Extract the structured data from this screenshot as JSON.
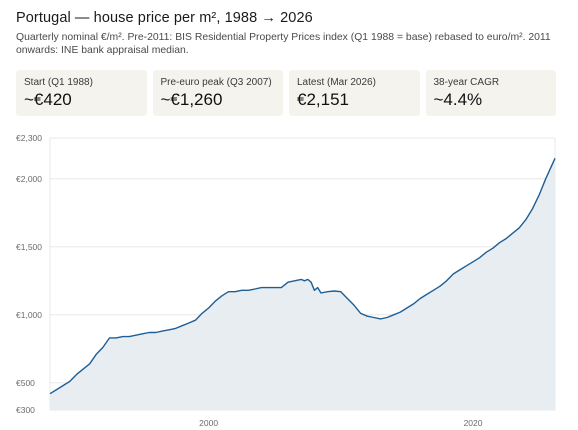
{
  "header": {
    "title": "Portugal — house price per m², 1988 → 2026",
    "subtitle": "Quarterly nominal €/m². Pre-2011: BIS Residential Property Prices index (Q1 1988 = base) rebased to euro/m². 2011 onwards: INE bank appraisal median."
  },
  "stats": [
    {
      "label": "Start (Q1 1988)",
      "value": "~€420"
    },
    {
      "label": "Pre-euro peak (Q3 2007)",
      "value": "~€1,260"
    },
    {
      "label": "Latest (Mar 2026)",
      "value": "€2,151"
    },
    {
      "label": "38-year CAGR",
      "value": "~4.4%"
    }
  ],
  "colors": {
    "line": "#1f5f95",
    "area": "#e8edf2",
    "grid": "#e3e3e3",
    "card_bg": "#f5f3ee"
  },
  "chart_data": {
    "type": "area",
    "title": "",
    "xlabel": "",
    "ylabel": "",
    "xlim": [
      1988.0,
      2026.2
    ],
    "ylim": [
      300,
      2300
    ],
    "y_ticks": [
      {
        "value": 2300,
        "label": "€2,300"
      },
      {
        "value": 2000,
        "label": "€2,000"
      },
      {
        "value": 1500,
        "label": "€1,500"
      },
      {
        "value": 1000,
        "label": "€1,000"
      },
      {
        "value": 500,
        "label": "€500"
      },
      {
        "value": 300,
        "label": "€300"
      }
    ],
    "x_ticks": [
      {
        "value": 2000,
        "label": "2000"
      },
      {
        "value": 2020,
        "label": "2020"
      }
    ],
    "grid": true,
    "series": [
      {
        "x": [
          1988.0,
          1988.5,
          1989.0,
          1989.5,
          1990.0,
          1990.5,
          1991.0,
          1991.5,
          1992.0,
          1992.5,
          1993.0,
          1993.5,
          1994.0,
          1994.5,
          1995.0,
          1995.5,
          1996.0,
          1996.5,
          1997.0,
          1997.5,
          1998.0,
          1998.5,
          1999.0,
          1999.5,
          2000.0,
          2000.5,
          2001.0,
          2001.5,
          2002.0,
          2002.5,
          2003.0,
          2003.5,
          2004.0,
          2004.5,
          2005.0,
          2005.5,
          2006.0,
          2006.5,
          2007.0,
          2007.25,
          2007.5,
          2007.75,
          2008.0,
          2008.25,
          2008.5,
          2009.0,
          2009.5,
          2010.0,
          2010.5,
          2011.0,
          2011.5,
          2012.0,
          2012.5,
          2013.0,
          2013.5,
          2014.0,
          2014.5,
          2015.0,
          2015.5,
          2016.0,
          2016.5,
          2017.0,
          2017.5,
          2018.0,
          2018.5,
          2019.0,
          2019.5,
          2020.0,
          2020.5,
          2021.0,
          2021.5,
          2022.0,
          2022.5,
          2023.0,
          2023.5,
          2024.0,
          2024.5,
          2025.0,
          2025.5,
          2026.2
        ],
        "values": [
          420,
          450,
          480,
          510,
          560,
          600,
          640,
          710,
          760,
          830,
          830,
          840,
          840,
          850,
          860,
          870,
          870,
          880,
          890,
          900,
          920,
          940,
          960,
          1010,
          1050,
          1100,
          1140,
          1170,
          1170,
          1180,
          1180,
          1190,
          1200,
          1200,
          1200,
          1200,
          1240,
          1250,
          1260,
          1250,
          1260,
          1240,
          1180,
          1200,
          1160,
          1170,
          1175,
          1170,
          1120,
          1070,
          1010,
          990,
          980,
          970,
          980,
          1000,
          1020,
          1050,
          1080,
          1120,
          1150,
          1180,
          1210,
          1250,
          1300,
          1330,
          1360,
          1390,
          1420,
          1460,
          1490,
          1530,
          1560,
          1600,
          1640,
          1700,
          1780,
          1880,
          2000,
          2151
        ]
      }
    ]
  }
}
